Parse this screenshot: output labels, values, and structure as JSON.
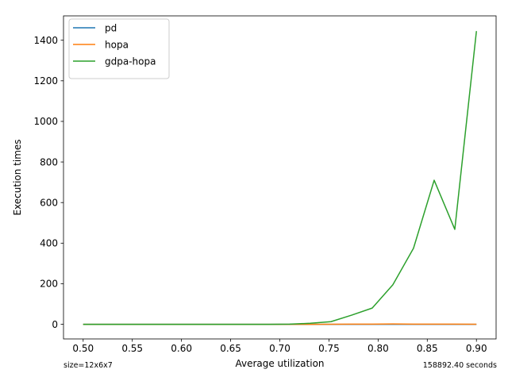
{
  "chart_data": {
    "type": "line",
    "title": "",
    "xlabel": "Average utilization",
    "ylabel": "Execution times",
    "xlim": [
      0.48,
      0.92
    ],
    "ylim": [
      -72,
      1520
    ],
    "xticks": [
      0.5,
      0.55,
      0.6,
      0.65,
      0.7,
      0.75,
      0.8,
      0.85,
      0.9
    ],
    "xtick_labels": [
      "0.50",
      "0.55",
      "0.60",
      "0.65",
      "0.70",
      "0.75",
      "0.80",
      "0.85",
      "0.90"
    ],
    "yticks": [
      0,
      200,
      400,
      600,
      800,
      1000,
      1200,
      1400
    ],
    "ytick_labels": [
      "0",
      "200",
      "400",
      "600",
      "800",
      "1000",
      "1200",
      "1400"
    ],
    "grid": false,
    "legend_position": "upper-left",
    "series": [
      {
        "name": "pd",
        "color": "#1f77b4",
        "x": [
          0.5,
          0.521,
          0.542,
          0.563,
          0.584,
          0.605,
          0.626,
          0.647,
          0.668,
          0.689,
          0.71,
          0.731,
          0.752,
          0.773,
          0.794,
          0.815,
          0.836,
          0.857,
          0.878,
          0.9
        ],
        "y": [
          0,
          0,
          0,
          0,
          0,
          0,
          0,
          0,
          0,
          0,
          0,
          0,
          0,
          0,
          0,
          0,
          0,
          0,
          0,
          0
        ]
      },
      {
        "name": "hopa",
        "color": "#ff7f0e",
        "x": [
          0.5,
          0.521,
          0.542,
          0.563,
          0.584,
          0.605,
          0.626,
          0.647,
          0.668,
          0.689,
          0.71,
          0.731,
          0.752,
          0.773,
          0.794,
          0.815,
          0.836,
          0.857,
          0.878,
          0.9
        ],
        "y": [
          0,
          0,
          0,
          0,
          0,
          0,
          0,
          0,
          0,
          0,
          0,
          0,
          0.5,
          1,
          1,
          2,
          1,
          1,
          1,
          0.5
        ]
      },
      {
        "name": "gdpa-hopa",
        "color": "#2ca02c",
        "x": [
          0.5,
          0.521,
          0.542,
          0.563,
          0.584,
          0.605,
          0.626,
          0.647,
          0.668,
          0.689,
          0.71,
          0.731,
          0.752,
          0.773,
          0.794,
          0.815,
          0.836,
          0.857,
          0.878,
          0.9
        ],
        "y": [
          0,
          0,
          0,
          0,
          0,
          0,
          0,
          0,
          0,
          0,
          1,
          5,
          13,
          45,
          80,
          195,
          375,
          710,
          468,
          1445
        ]
      }
    ]
  },
  "footer": {
    "left": "size=12x6x7",
    "right": "158892.40 seconds"
  }
}
